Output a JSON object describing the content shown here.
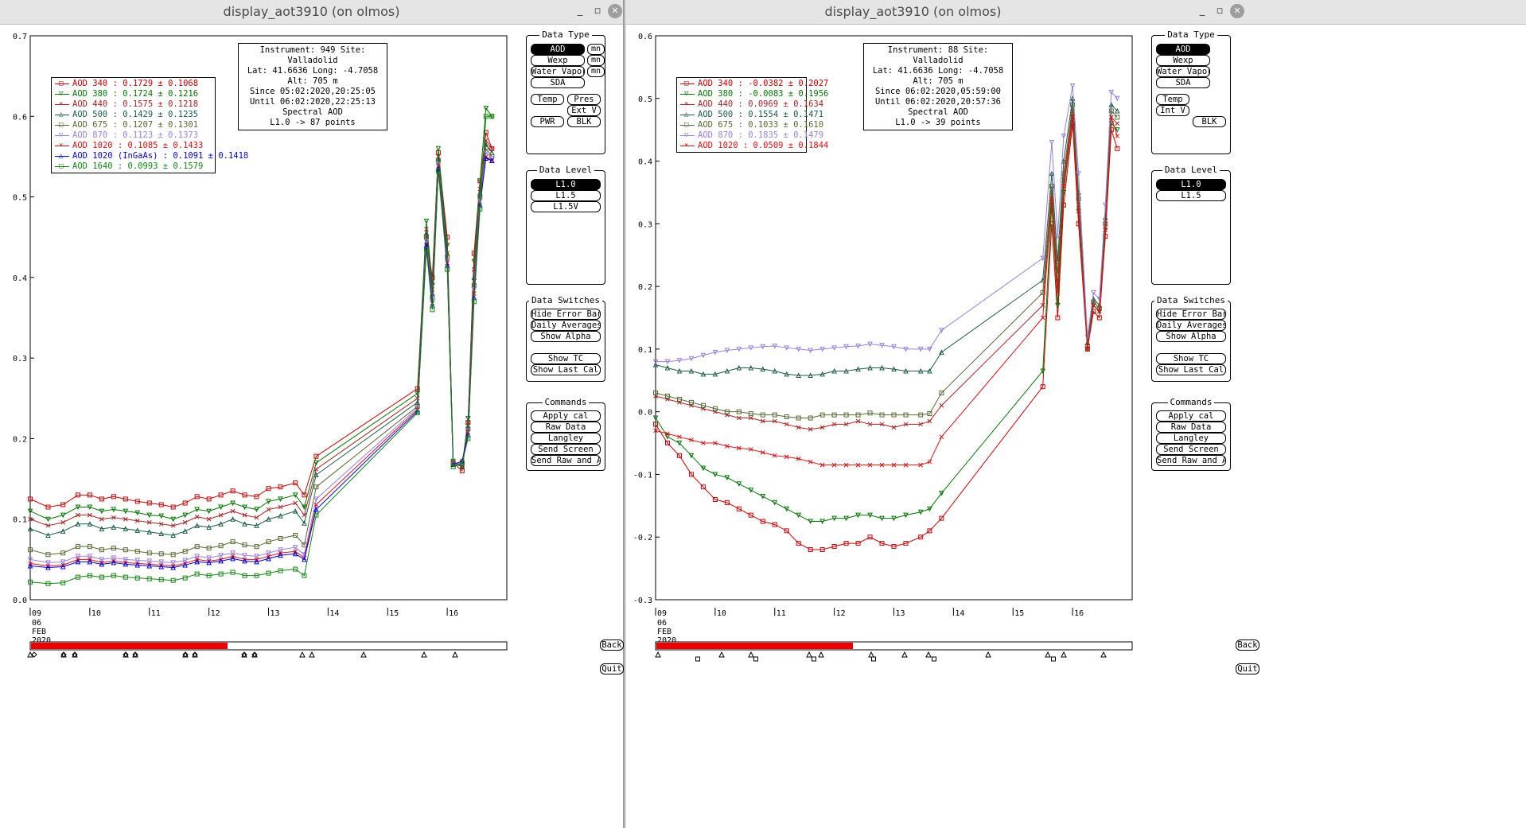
{
  "windows": [
    {
      "title": "display_aot3910 (on olmos)",
      "info": {
        "lines": [
          "Instrument: 949 Site: Valladolid",
          "Lat: 41.6636 Long: -4.7058 Alt: 705 m",
          "Since 05:02:2020,20:25:05",
          "Until 06:02:2020,22:25:13",
          "Spectral AOD",
          "L1.0 -> 87 points"
        ]
      },
      "legend": [
        {
          "label": "AOD 340   : 0.1729 ± 0.1068",
          "color": "#cc0000",
          "marker": "□"
        },
        {
          "label": "AOD 380   : 0.1724 ± 0.1216",
          "color": "#007700",
          "marker": "▽"
        },
        {
          "label": "AOD 440   : 0.1575 ± 0.1218",
          "color": "#aa2222",
          "marker": "×"
        },
        {
          "label": "AOD 500   : 0.1429 ± 0.1235",
          "color": "#1a5c4a",
          "marker": "△"
        },
        {
          "label": "AOD 675   : 0.1207 ± 0.1301",
          "color": "#556b2f",
          "marker": "□"
        },
        {
          "label": "AOD 870   : 0.1123 ± 0.1373",
          "color": "#9a7fe0",
          "marker": "▽"
        },
        {
          "label": "AOD 1020  : 0.1085 ± 0.1433",
          "color": "#e01010",
          "marker": "×"
        },
        {
          "label": "AOD 1020 (InGaAs)  : 0.1091 ± 0.1418",
          "color": "#0000ee",
          "marker": "△"
        },
        {
          "label": "AOD 1640  : 0.0993 ± 0.1579",
          "color": "#118811",
          "marker": "□"
        }
      ],
      "data_type": {
        "title": "Data Type",
        "buttons": [
          "AOD",
          "Wexp",
          "Water Vapor",
          "SDA",
          "Temp",
          "Pres",
          "Ext V",
          "PWR",
          "BLK"
        ],
        "mn": "mn"
      },
      "data_level": {
        "title": "Data Level",
        "buttons": [
          "L1.0",
          "L1.5",
          "L1.5V"
        ]
      },
      "data_switches": {
        "title": "Data Switches",
        "buttons": [
          "Hide Error Bars",
          "Daily Averages",
          "Show Alpha",
          "Show TC",
          "Show Last Cal"
        ]
      },
      "commands": {
        "title": "Commands",
        "buttons": [
          "Apply cal",
          "Raw Data",
          "Langley",
          "Send Screen",
          "Send Raw and AOD"
        ]
      },
      "back": "Back",
      "quit": "Quit"
    },
    {
      "title": "display_aot3910 (on olmos)",
      "info": {
        "lines": [
          "Instrument: 88 Site: Valladolid",
          "Lat: 41.6636 Long: -4.7058 Alt: 705 m",
          "Since 06:02:2020,05:59:00",
          "Until 06:02:2020,20:57:36",
          "Spectral AOD",
          "L1.0 -> 39 points"
        ]
      },
      "legend": [
        {
          "label": "AOD 340   : -0.0382 ± 0.2027",
          "color": "#cc0000",
          "marker": "□"
        },
        {
          "label": "AOD 380   : -0.0083 ± 0.1956",
          "color": "#007700",
          "marker": "▽"
        },
        {
          "label": "AOD 440   : 0.0969 ± 0.1634",
          "color": "#aa2222",
          "marker": "×"
        },
        {
          "label": "AOD 500   : 0.1554 ± 0.1471",
          "color": "#1a5c4a",
          "marker": "△"
        },
        {
          "label": "AOD 675   : 0.1033 ± 0.1610",
          "color": "#556b2f",
          "marker": "□"
        },
        {
          "label": "AOD 870   : 0.1835 ± 0.1479",
          "color": "#9a7fe0",
          "marker": "▽"
        },
        {
          "label": "AOD 1020  : 0.0509 ± 0.1844",
          "color": "#e01010",
          "marker": "×"
        }
      ],
      "data_type": {
        "title": "Data Type",
        "buttons": [
          "AOD",
          "Wexp",
          "Water Vapor",
          "SDA",
          "Temp",
          "Int V",
          "BLK"
        ]
      },
      "data_level": {
        "title": "Data Level",
        "buttons": [
          "L1.0",
          "L1.5"
        ]
      },
      "data_switches": {
        "title": "Data Switches",
        "buttons": [
          "Hide Error Bars",
          "Daily Averages",
          "Show Alpha",
          "Show TC",
          "Show Last Cal"
        ]
      },
      "commands": {
        "title": "Commands",
        "buttons": [
          "Apply cal",
          "Raw Data",
          "Langley",
          "Send Screen",
          "Send Raw and AOD"
        ]
      },
      "back": "Back",
      "quit": "Quit"
    }
  ],
  "chart_data": [
    {
      "type": "line",
      "ylim": [
        0.0,
        0.7
      ],
      "yticks": [
        "0.0",
        "0.1",
        "0.2",
        "0.3",
        "0.4",
        "0.5",
        "0.6",
        "0.7"
      ],
      "xlim": [
        9,
        17
      ],
      "xticks": [
        "09",
        "10",
        "11",
        "12",
        "13",
        "14",
        "15",
        "16"
      ],
      "xsub": [
        "06",
        "FEB",
        "2020"
      ],
      "grid": false,
      "legend_position": "top-left",
      "x": [
        9.0,
        9.3,
        9.55,
        9.8,
        10.0,
        10.2,
        10.4,
        10.6,
        10.8,
        11.0,
        11.2,
        11.4,
        11.6,
        11.8,
        12.0,
        12.2,
        12.4,
        12.6,
        12.8,
        13.0,
        13.2,
        13.45,
        13.6,
        13.8,
        15.5,
        15.65,
        15.75,
        15.85,
        16.0,
        16.1,
        16.25,
        16.35,
        16.45,
        16.55,
        16.65,
        16.75
      ],
      "series": [
        {
          "name": "AOD 340",
          "color": "#cc0000",
          "values": [
            0.125,
            0.115,
            0.118,
            0.13,
            0.13,
            0.125,
            0.128,
            0.125,
            0.122,
            0.12,
            0.118,
            0.115,
            0.12,
            0.128,
            0.125,
            0.13,
            0.135,
            0.13,
            0.128,
            0.138,
            0.14,
            0.145,
            0.13,
            0.178,
            0.262,
            0.45,
            0.4,
            0.555,
            0.45,
            0.17,
            0.16,
            0.22,
            0.43,
            0.52,
            0.58,
            0.56
          ]
        },
        {
          "name": "AOD 380",
          "color": "#007700",
          "values": [
            0.11,
            0.1,
            0.105,
            0.115,
            0.115,
            0.11,
            0.112,
            0.11,
            0.108,
            0.105,
            0.104,
            0.1,
            0.105,
            0.112,
            0.11,
            0.115,
            0.12,
            0.115,
            0.112,
            0.122,
            0.125,
            0.13,
            0.115,
            0.17,
            0.256,
            0.47,
            0.39,
            0.56,
            0.44,
            0.172,
            0.165,
            0.225,
            0.42,
            0.52,
            0.61,
            0.6
          ]
        },
        {
          "name": "AOD 440",
          "color": "#aa2222",
          "values": [
            0.1,
            0.092,
            0.096,
            0.105,
            0.105,
            0.1,
            0.102,
            0.1,
            0.098,
            0.096,
            0.094,
            0.092,
            0.096,
            0.103,
            0.1,
            0.105,
            0.11,
            0.105,
            0.102,
            0.112,
            0.115,
            0.12,
            0.105,
            0.162,
            0.25,
            0.46,
            0.385,
            0.55,
            0.43,
            0.17,
            0.165,
            0.22,
            0.41,
            0.51,
            0.57,
            0.56
          ]
        },
        {
          "name": "AOD 500",
          "color": "#1a5c4a",
          "values": [
            0.088,
            0.08,
            0.085,
            0.094,
            0.094,
            0.088,
            0.09,
            0.088,
            0.086,
            0.084,
            0.082,
            0.08,
            0.085,
            0.092,
            0.09,
            0.094,
            0.1,
            0.094,
            0.092,
            0.1,
            0.104,
            0.11,
            0.095,
            0.155,
            0.245,
            0.455,
            0.38,
            0.548,
            0.43,
            0.168,
            0.166,
            0.215,
            0.4,
            0.505,
            0.565,
            0.555
          ]
        },
        {
          "name": "AOD 675",
          "color": "#556b2f",
          "values": [
            0.062,
            0.056,
            0.058,
            0.066,
            0.066,
            0.062,
            0.064,
            0.062,
            0.06,
            0.058,
            0.057,
            0.056,
            0.06,
            0.066,
            0.064,
            0.067,
            0.072,
            0.068,
            0.066,
            0.072,
            0.076,
            0.08,
            0.068,
            0.14,
            0.24,
            0.45,
            0.375,
            0.545,
            0.425,
            0.168,
            0.168,
            0.212,
            0.39,
            0.5,
            0.56,
            0.55
          ]
        },
        {
          "name": "AOD 870",
          "color": "#9a7fe0",
          "values": [
            0.05,
            0.046,
            0.047,
            0.054,
            0.054,
            0.05,
            0.052,
            0.05,
            0.049,
            0.048,
            0.047,
            0.046,
            0.049,
            0.054,
            0.052,
            0.055,
            0.058,
            0.055,
            0.054,
            0.058,
            0.062,
            0.065,
            0.056,
            0.125,
            0.238,
            0.445,
            0.37,
            0.54,
            0.42,
            0.168,
            0.17,
            0.21,
            0.385,
            0.495,
            0.555,
            0.548
          ]
        },
        {
          "name": "AOD 1020",
          "color": "#e01010",
          "values": [
            0.045,
            0.042,
            0.043,
            0.05,
            0.05,
            0.046,
            0.048,
            0.046,
            0.045,
            0.044,
            0.043,
            0.042,
            0.045,
            0.05,
            0.048,
            0.05,
            0.054,
            0.05,
            0.05,
            0.054,
            0.058,
            0.06,
            0.052,
            0.118,
            0.236,
            0.44,
            0.368,
            0.538,
            0.418,
            0.168,
            0.172,
            0.208,
            0.38,
            0.49,
            0.55,
            0.545
          ]
        },
        {
          "name": "AOD 1020 (InGaAs)",
          "color": "#0000ee",
          "values": [
            0.042,
            0.04,
            0.041,
            0.047,
            0.047,
            0.044,
            0.046,
            0.044,
            0.043,
            0.042,
            0.041,
            0.04,
            0.043,
            0.047,
            0.046,
            0.048,
            0.051,
            0.048,
            0.047,
            0.051,
            0.055,
            0.057,
            0.05,
            0.112,
            0.234,
            0.44,
            0.365,
            0.535,
            0.415,
            0.168,
            0.172,
            0.205,
            0.375,
            0.49,
            0.548,
            0.545
          ]
        },
        {
          "name": "AOD 1640",
          "color": "#118811",
          "values": [
            0.022,
            0.02,
            0.021,
            0.028,
            0.03,
            0.028,
            0.03,
            0.028,
            0.027,
            0.026,
            0.025,
            0.024,
            0.027,
            0.032,
            0.03,
            0.032,
            0.034,
            0.03,
            0.03,
            0.033,
            0.036,
            0.038,
            0.03,
            0.105,
            0.232,
            0.435,
            0.36,
            0.532,
            0.41,
            0.165,
            0.17,
            0.2,
            0.37,
            0.485,
            0.6,
            0.6
          ]
        }
      ]
    },
    {
      "type": "line",
      "ylim": [
        -0.3,
        0.6
      ],
      "yticks": [
        "-0.3",
        "-0.2",
        "-0.1",
        "0.0",
        "0.1",
        "0.2",
        "0.3",
        "0.4",
        "0.5",
        "0.6"
      ],
      "xlim": [
        9,
        17
      ],
      "xticks": [
        "09",
        "10",
        "11",
        "12",
        "13",
        "14",
        "15",
        "16"
      ],
      "xsub": [
        "06",
        "FEB",
        "2020"
      ],
      "grid": false,
      "legend_position": "top-left",
      "x": [
        9.0,
        9.2,
        9.4,
        9.6,
        9.8,
        10.0,
        10.2,
        10.4,
        10.6,
        10.8,
        11.0,
        11.2,
        11.4,
        11.6,
        11.8,
        12.0,
        12.2,
        12.4,
        12.6,
        12.8,
        13.0,
        13.2,
        13.45,
        13.6,
        13.8,
        15.5,
        15.65,
        15.75,
        15.85,
        16.0,
        16.1,
        16.25,
        16.35,
        16.45,
        16.55,
        16.65,
        16.75
      ],
      "series": [
        {
          "name": "AOD 340",
          "color": "#cc0000",
          "values": [
            -0.02,
            -0.05,
            -0.07,
            -0.1,
            -0.12,
            -0.14,
            -0.145,
            -0.155,
            -0.165,
            -0.175,
            -0.18,
            -0.19,
            -0.21,
            -0.22,
            -0.22,
            -0.215,
            -0.21,
            -0.21,
            -0.2,
            -0.21,
            -0.215,
            -0.21,
            -0.2,
            -0.19,
            -0.17,
            0.04,
            0.3,
            0.15,
            0.33,
            0.46,
            0.3,
            0.1,
            0.16,
            0.15,
            0.28,
            0.45,
            0.42
          ]
        },
        {
          "name": "AOD 380",
          "color": "#007700",
          "values": [
            -0.01,
            -0.04,
            -0.05,
            -0.07,
            -0.09,
            -0.1,
            -0.105,
            -0.115,
            -0.125,
            -0.135,
            -0.145,
            -0.155,
            -0.165,
            -0.175,
            -0.175,
            -0.17,
            -0.17,
            -0.165,
            -0.165,
            -0.17,
            -0.17,
            -0.165,
            -0.16,
            -0.155,
            -0.13,
            0.065,
            0.33,
            0.17,
            0.35,
            0.47,
            0.32,
            0.1,
            0.17,
            0.16,
            0.29,
            0.46,
            0.45
          ]
        },
        {
          "name": "AOD 440",
          "color": "#aa2222",
          "values": [
            0.025,
            0.02,
            0.015,
            0.01,
            0.005,
            0.0,
            -0.005,
            -0.01,
            -0.01,
            -0.015,
            -0.015,
            -0.02,
            -0.025,
            -0.028,
            -0.025,
            -0.02,
            -0.02,
            -0.015,
            -0.02,
            -0.02,
            -0.025,
            -0.02,
            -0.02,
            -0.015,
            0.01,
            0.17,
            0.35,
            0.2,
            0.37,
            0.48,
            0.33,
            0.105,
            0.175,
            0.165,
            0.3,
            0.47,
            0.46
          ]
        },
        {
          "name": "AOD 500",
          "color": "#1a5c4a",
          "values": [
            0.075,
            0.07,
            0.065,
            0.065,
            0.06,
            0.06,
            0.065,
            0.07,
            0.07,
            0.068,
            0.065,
            0.06,
            0.058,
            0.058,
            0.06,
            0.065,
            0.065,
            0.068,
            0.07,
            0.07,
            0.068,
            0.065,
            0.065,
            0.065,
            0.095,
            0.21,
            0.38,
            0.24,
            0.4,
            0.5,
            0.35,
            0.11,
            0.18,
            0.17,
            0.31,
            0.49,
            0.48
          ]
        },
        {
          "name": "AOD 675",
          "color": "#556b2f",
          "values": [
            0.03,
            0.025,
            0.02,
            0.015,
            0.01,
            0.005,
            0.0,
            0.0,
            -0.003,
            -0.005,
            -0.005,
            -0.008,
            -0.01,
            -0.01,
            -0.005,
            -0.005,
            -0.005,
            -0.005,
            -0.002,
            -0.005,
            -0.005,
            -0.005,
            -0.005,
            -0.003,
            0.03,
            0.19,
            0.36,
            0.22,
            0.38,
            0.49,
            0.34,
            0.105,
            0.175,
            0.165,
            0.3,
            0.48,
            0.47
          ]
        },
        {
          "name": "AOD 870",
          "color": "#9a7fe0",
          "values": [
            0.08,
            0.08,
            0.082,
            0.085,
            0.09,
            0.095,
            0.098,
            0.1,
            0.102,
            0.104,
            0.105,
            0.102,
            0.1,
            0.098,
            0.1,
            0.102,
            0.104,
            0.105,
            0.108,
            0.106,
            0.104,
            0.1,
            0.1,
            0.1,
            0.13,
            0.245,
            0.43,
            0.28,
            0.44,
            0.52,
            0.38,
            0.12,
            0.19,
            0.18,
            0.33,
            0.51,
            0.5
          ]
        },
        {
          "name": "AOD 1020",
          "color": "#e01010",
          "values": [
            -0.03,
            -0.035,
            -0.04,
            -0.045,
            -0.05,
            -0.05,
            -0.055,
            -0.058,
            -0.06,
            -0.065,
            -0.07,
            -0.072,
            -0.075,
            -0.08,
            -0.085,
            -0.085,
            -0.085,
            -0.085,
            -0.085,
            -0.085,
            -0.085,
            -0.085,
            -0.085,
            -0.08,
            -0.04,
            0.15,
            0.34,
            0.19,
            0.36,
            0.47,
            0.32,
            0.1,
            0.17,
            0.16,
            0.29,
            0.47,
            0.44
          ]
        }
      ]
    }
  ]
}
